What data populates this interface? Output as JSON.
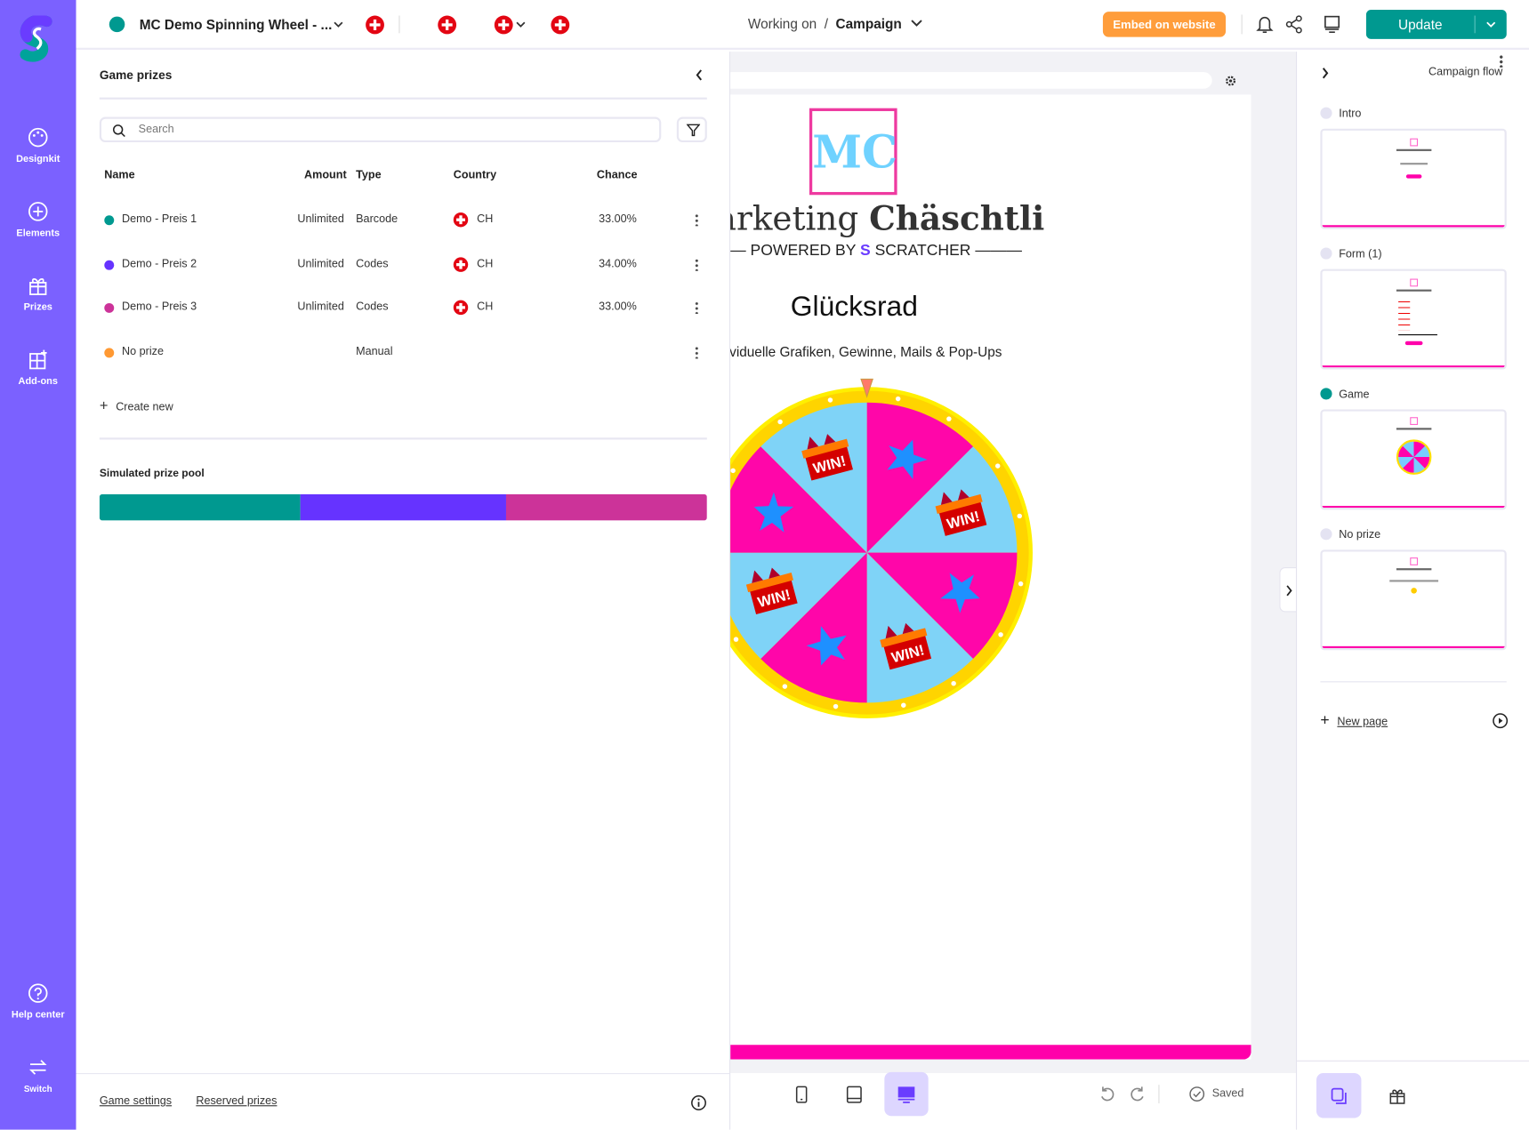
{
  "sidebar": {
    "items": [
      {
        "label": "Designkit"
      },
      {
        "label": "Elements"
      },
      {
        "label": "Prizes"
      },
      {
        "label": "Add-ons"
      }
    ],
    "help": "Help center",
    "switch": "Switch"
  },
  "topbar": {
    "campaign_name": "MC Demo Spinning Wheel - ...",
    "breadcrumb_prefix": "Working on",
    "breadcrumb_sep": "/",
    "breadcrumb_current": "Campaign",
    "embed_label": "Embed on website",
    "update_label": "Update"
  },
  "prizes": {
    "title": "Game prizes",
    "search_placeholder": "Search",
    "columns": {
      "name": "Name",
      "amount": "Amount",
      "type": "Type",
      "country": "Country",
      "chance": "Chance"
    },
    "rows": [
      {
        "name": "Demo - Preis 1",
        "amount": "Unlimited",
        "type": "Barcode",
        "country": "CH",
        "chance": "33.00%",
        "color": "#009990"
      },
      {
        "name": "Demo - Preis 2",
        "amount": "Unlimited",
        "type": "Codes",
        "country": "CH",
        "chance": "34.00%",
        "color": "#6633ff"
      },
      {
        "name": "Demo - Preis 3",
        "amount": "Unlimited",
        "type": "Codes",
        "country": "CH",
        "chance": "33.00%",
        "color": "#cc3399"
      },
      {
        "name": "No prize",
        "amount": "",
        "type": "Manual",
        "country": "",
        "chance": "",
        "color": "#ff9933"
      }
    ],
    "create_new": "Create new",
    "pool_title": "Simulated prize pool",
    "pool": [
      {
        "share": 33,
        "color": "#009990"
      },
      {
        "share": 34,
        "color": "#6633ff"
      },
      {
        "share": 33,
        "color": "#cc3399"
      }
    ],
    "footer": {
      "game_settings": "Game settings",
      "reserved_prizes": "Reserved prizes"
    }
  },
  "preview": {
    "logo_mc": "MC",
    "logo_word1": "arketing",
    "logo_word2": "Chäschtli",
    "powered": "POWERED BY",
    "scratcher": "SCRATCHER",
    "title": "Glücksrad",
    "subtitle": "ividuelle Grafiken, Gewinne, Mails & Pop-Ups",
    "win": "WIN!",
    "saved": "Saved"
  },
  "flow": {
    "title": "Campaign flow",
    "pages": [
      {
        "label": "Intro",
        "active": false
      },
      {
        "label": "Form (1)",
        "active": false
      },
      {
        "label": "Game",
        "active": true
      },
      {
        "label": "No prize",
        "active": false
      }
    ],
    "new_page": "New page"
  }
}
